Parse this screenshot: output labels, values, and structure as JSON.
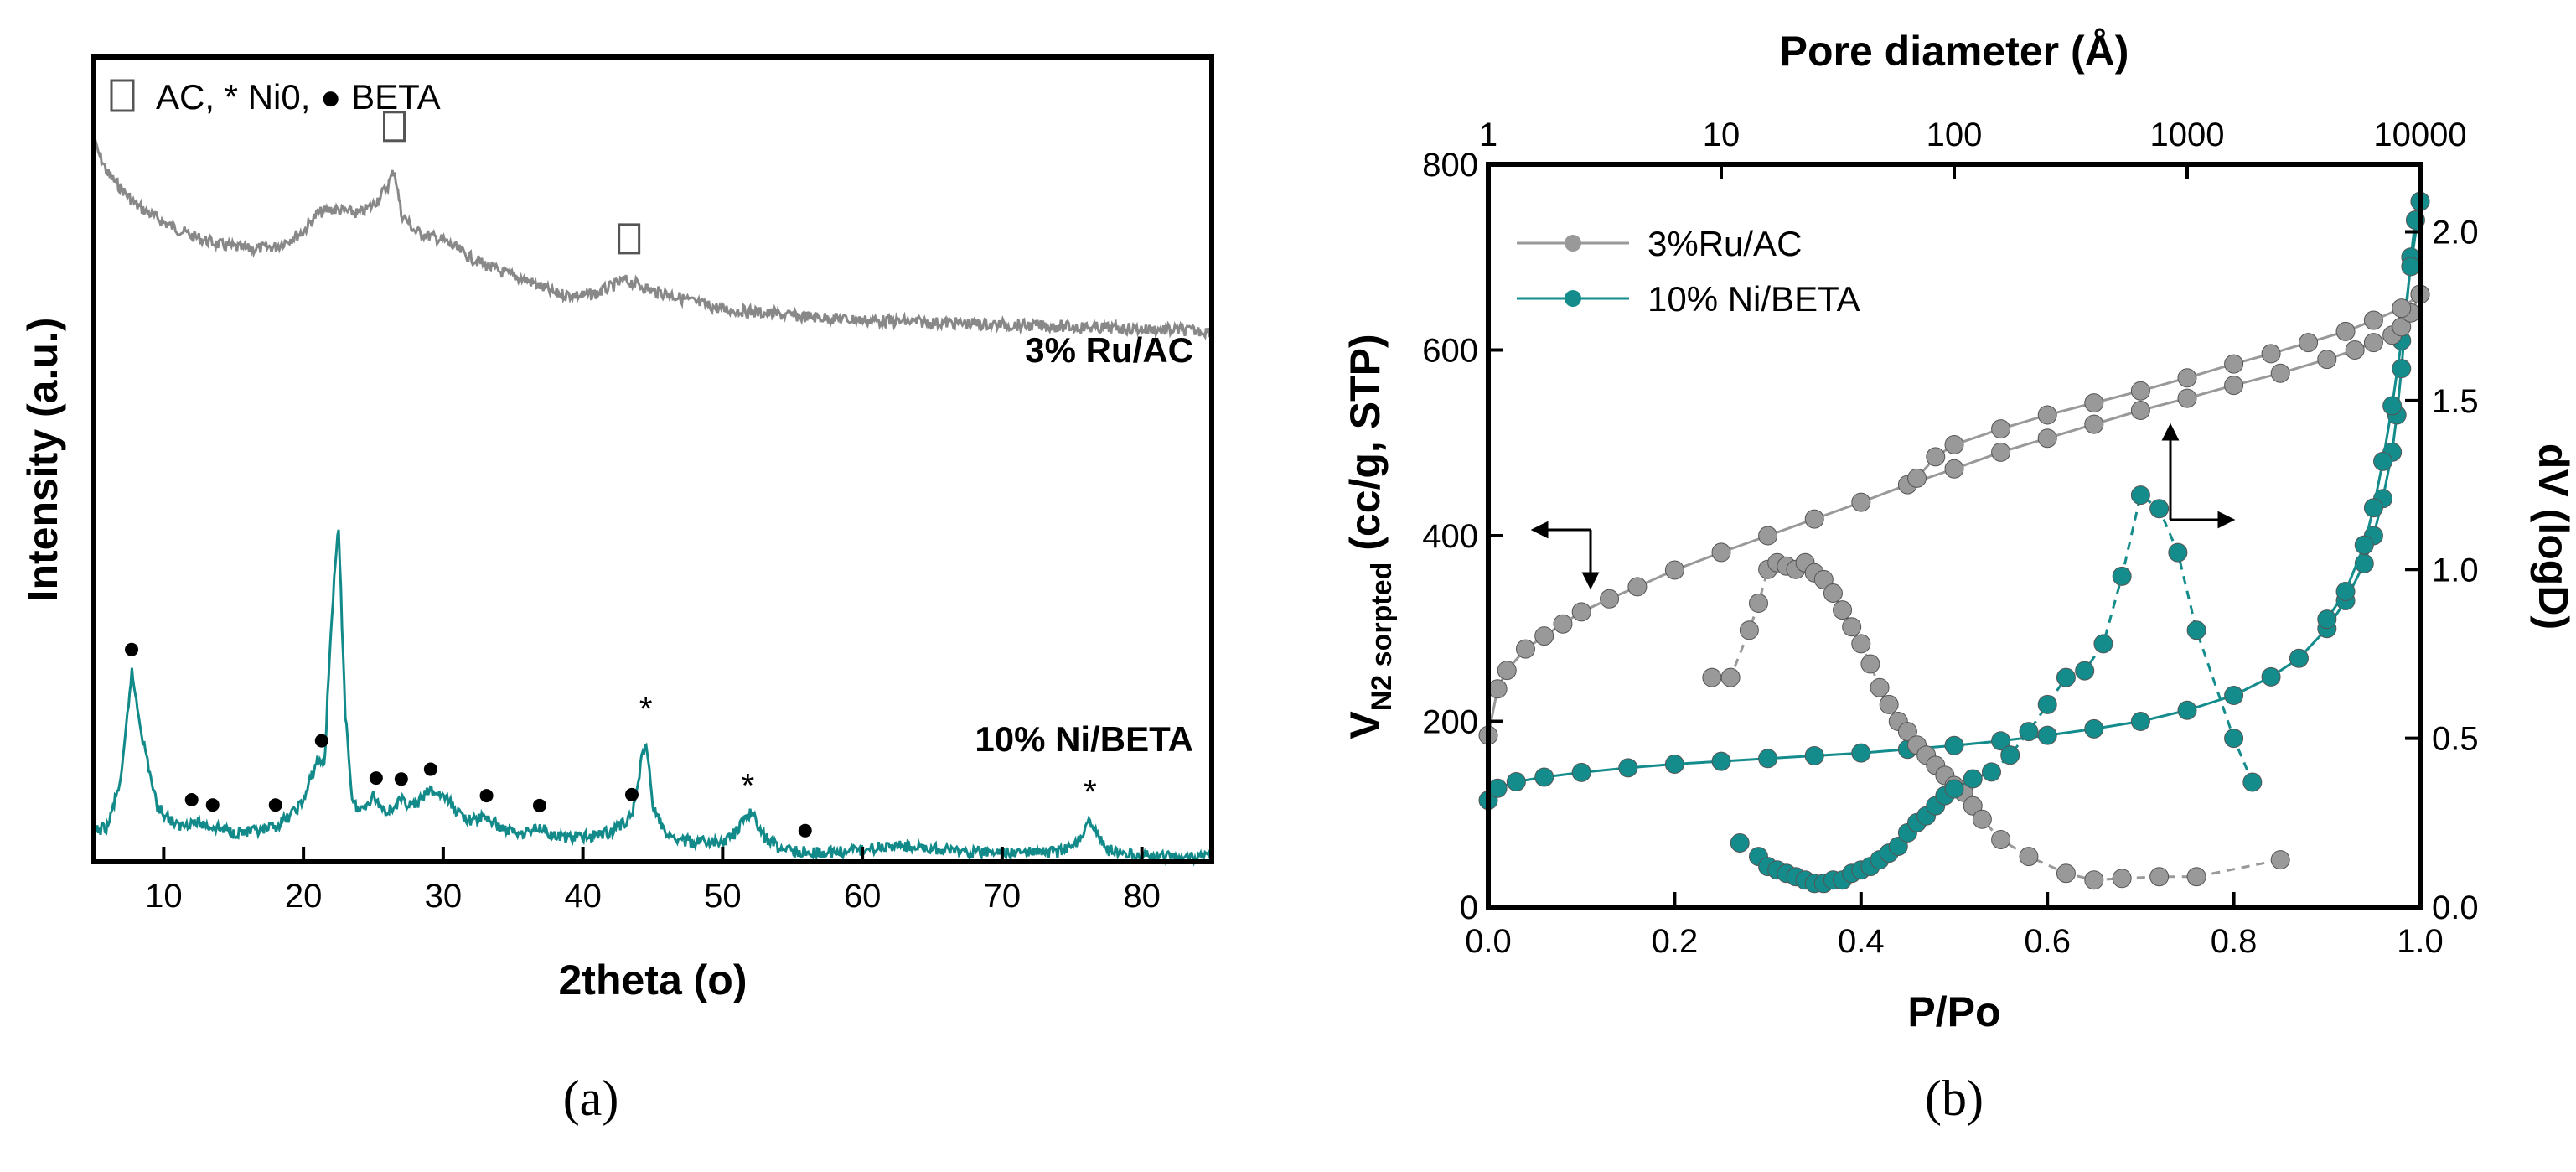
{
  "chart_data": [
    {
      "type": "line",
      "panel_label": "(a)",
      "xlabel": "2theta (o)",
      "ylabel": "Intensity (a.u.)",
      "xlim": [
        5,
        85
      ],
      "xticks": [
        10,
        20,
        30,
        40,
        50,
        60,
        70,
        80
      ],
      "legend_text": "AC, * Ni0, ● BETA",
      "series": [
        {
          "name": "3% Ru/AC",
          "color": "#888888",
          "x": [
            5,
            6,
            8,
            10,
            12,
            14,
            16,
            18,
            20,
            21,
            22,
            23,
            24,
            25,
            26,
            26.5,
            27,
            28,
            30,
            32,
            34,
            36,
            38,
            40,
            41,
            42,
            43,
            44,
            45,
            46,
            48,
            50,
            55,
            60,
            65,
            70,
            75,
            80,
            85
          ],
          "values": [
            1.0,
            0.93,
            0.86,
            0.82,
            0.79,
            0.77,
            0.76,
            0.765,
            0.8,
            0.84,
            0.85,
            0.845,
            0.84,
            0.86,
            0.9,
            0.94,
            0.84,
            0.8,
            0.78,
            0.74,
            0.71,
            0.69,
            0.66,
            0.655,
            0.66,
            0.675,
            0.69,
            0.68,
            0.665,
            0.66,
            0.64,
            0.625,
            0.61,
            0.6,
            0.595,
            0.59,
            0.585,
            0.58,
            0.575
          ]
        },
        {
          "name": "10% Ni/BETA",
          "color": "#138a8a",
          "x": [
            5,
            6,
            7,
            7.7,
            8.5,
            9.5,
            11,
            12,
            13.5,
            15,
            17,
            18,
            19,
            20,
            21,
            21.5,
            22,
            22.5,
            23,
            23.5,
            24,
            25,
            25.5,
            26,
            27,
            28,
            29,
            30,
            31,
            32,
            33,
            34,
            35,
            36,
            37,
            38,
            40,
            42,
            43.5,
            44,
            44.5,
            45,
            46,
            48,
            50,
            51,
            52,
            53,
            54,
            56,
            58,
            60,
            62,
            64,
            66,
            68,
            70,
            72,
            74,
            75,
            76.3,
            77.5,
            80,
            85
          ],
          "values": [
            0.09,
            0.1,
            0.2,
            0.4,
            0.27,
            0.14,
            0.1,
            0.11,
            0.1,
            0.09,
            0.09,
            0.1,
            0.12,
            0.15,
            0.23,
            0.22,
            0.5,
            0.68,
            0.32,
            0.15,
            0.13,
            0.16,
            0.14,
            0.13,
            0.15,
            0.14,
            0.17,
            0.16,
            0.13,
            0.11,
            0.12,
            0.1,
            0.09,
            0.09,
            0.1,
            0.08,
            0.08,
            0.09,
            0.12,
            0.2,
            0.27,
            0.14,
            0.08,
            0.07,
            0.07,
            0.09,
            0.13,
            0.08,
            0.06,
            0.05,
            0.05,
            0.055,
            0.065,
            0.06,
            0.055,
            0.05,
            0.05,
            0.05,
            0.05,
            0.06,
            0.11,
            0.055,
            0.045,
            0.04
          ]
        }
      ],
      "markers_ac": [
        26.5,
        43.3
      ],
      "markers_ni": [
        44.5,
        51.8,
        76.3
      ],
      "markers_beta": [
        7.7,
        12,
        13.5,
        18,
        21.3,
        25.2,
        27,
        29.1,
        33.1,
        36.9,
        43.5,
        55.9
      ],
      "series_labels": [
        "3% Ru/AC",
        "10% Ni/BETA"
      ]
    },
    {
      "type": "scatter",
      "panel_label": "(b)",
      "xlabel": "P/Po",
      "ylabel_left": "VN2 sorpted (cc/g, STP)",
      "ylabel_left_main": "V",
      "ylabel_left_sub": "N2 sorpted",
      "ylabel_left_rest": " (cc/g, STP)",
      "ylabel_right": "dV (logD)",
      "top_xlabel": "Pore diameter (Å)",
      "xlim": [
        0,
        1
      ],
      "ylim_left": [
        0,
        800
      ],
      "ylim_right": [
        0,
        2.2
      ],
      "xticks": [
        "0.0",
        "0.2",
        "0.4",
        "0.6",
        "0.8",
        "1.0"
      ],
      "yticks_left": [
        "0",
        "200",
        "400",
        "600",
        "800"
      ],
      "yticks_right": [
        "0.0",
        "0.5",
        "1.0",
        "1.5",
        "2.0"
      ],
      "top_ticks": [
        "1",
        "10",
        "100",
        "1000",
        "10000"
      ],
      "legend": [
        "3%Ru/AC",
        "10% Ni/BETA"
      ],
      "colors": {
        "ru_ac": "#999999",
        "ni_beta": "#148c8c"
      },
      "isotherm_ru_ac": {
        "x": [
          0.0,
          0.01,
          0.02,
          0.04,
          0.06,
          0.08,
          0.1,
          0.13,
          0.16,
          0.2,
          0.25,
          0.3,
          0.35,
          0.4,
          0.45,
          0.5,
          0.55,
          0.6,
          0.65,
          0.7,
          0.75,
          0.8,
          0.85,
          0.9,
          0.93,
          0.95,
          0.97,
          0.98,
          0.99,
          1.0
        ],
        "values": [
          185,
          235,
          255,
          278,
          292,
          305,
          318,
          332,
          345,
          363,
          382,
          400,
          418,
          436,
          455,
          472,
          490,
          505,
          520,
          535,
          548,
          562,
          575,
          590,
          600,
          608,
          616,
          625,
          640,
          660
        ]
      },
      "desorption_ru_ac": {
        "x": [
          1.0,
          0.98,
          0.95,
          0.92,
          0.88,
          0.84,
          0.8,
          0.75,
          0.7,
          0.65,
          0.6,
          0.55,
          0.5,
          0.48,
          0.46
        ],
        "values": [
          660,
          645,
          632,
          620,
          608,
          596,
          585,
          570,
          556,
          543,
          530,
          515,
          498,
          485,
          462
        ]
      },
      "isotherm_ni_beta": {
        "x": [
          0.0,
          0.01,
          0.03,
          0.06,
          0.1,
          0.15,
          0.2,
          0.25,
          0.3,
          0.35,
          0.4,
          0.45,
          0.5,
          0.55,
          0.6,
          0.65,
          0.7,
          0.75,
          0.8,
          0.84,
          0.87,
          0.9,
          0.92,
          0.94,
          0.95,
          0.96,
          0.97,
          0.975,
          0.98,
          0.985,
          0.99,
          0.995,
          1.0
        ],
        "values": [
          115,
          128,
          135,
          140,
          145,
          150,
          154,
          157,
          160,
          163,
          166,
          170,
          174,
          179,
          185,
          192,
          200,
          212,
          228,
          248,
          268,
          300,
          330,
          370,
          400,
          440,
          490,
          530,
          580,
          640,
          700,
          740,
          760
        ]
      },
      "desorption_ni_beta": {
        "x": [
          1.0,
          0.99,
          0.98,
          0.97,
          0.96,
          0.95,
          0.94,
          0.92,
          0.9
        ],
        "values": [
          760,
          690,
          610,
          540,
          480,
          430,
          390,
          340,
          310
        ]
      },
      "psd_ru_ac": {
        "x": [
          0.24,
          0.26,
          0.28,
          0.29,
          0.3,
          0.31,
          0.32,
          0.33,
          0.34,
          0.35,
          0.36,
          0.37,
          0.38,
          0.39,
          0.4,
          0.41,
          0.42,
          0.43,
          0.44,
          0.45,
          0.46,
          0.47,
          0.48,
          0.49,
          0.5,
          0.51,
          0.52,
          0.53,
          0.55,
          0.58,
          0.62,
          0.65,
          0.68,
          0.72,
          0.76,
          0.85
        ],
        "values": [
          0.68,
          0.68,
          0.82,
          0.9,
          1.0,
          1.02,
          1.01,
          1.0,
          1.02,
          0.99,
          0.97,
          0.93,
          0.88,
          0.83,
          0.78,
          0.72,
          0.65,
          0.6,
          0.55,
          0.52,
          0.48,
          0.45,
          0.42,
          0.39,
          0.36,
          0.34,
          0.3,
          0.26,
          0.2,
          0.15,
          0.1,
          0.08,
          0.085,
          0.09,
          0.09,
          0.14
        ]
      },
      "psd_ni_beta": {
        "x": [
          0.27,
          0.29,
          0.3,
          0.31,
          0.32,
          0.33,
          0.34,
          0.35,
          0.36,
          0.37,
          0.38,
          0.39,
          0.4,
          0.41,
          0.42,
          0.43,
          0.44,
          0.45,
          0.46,
          0.47,
          0.48,
          0.49,
          0.5,
          0.52,
          0.54,
          0.56,
          0.58,
          0.6,
          0.62,
          0.64,
          0.66,
          0.68,
          0.7,
          0.72,
          0.74,
          0.76,
          0.8,
          0.82
        ],
        "values": [
          0.19,
          0.15,
          0.12,
          0.11,
          0.1,
          0.09,
          0.08,
          0.07,
          0.07,
          0.08,
          0.08,
          0.1,
          0.11,
          0.12,
          0.14,
          0.16,
          0.18,
          0.22,
          0.25,
          0.27,
          0.3,
          0.33,
          0.35,
          0.38,
          0.4,
          0.45,
          0.52,
          0.6,
          0.68,
          0.7,
          0.78,
          0.98,
          1.22,
          1.18,
          1.05,
          0.82,
          0.5,
          0.37
        ]
      }
    }
  ]
}
